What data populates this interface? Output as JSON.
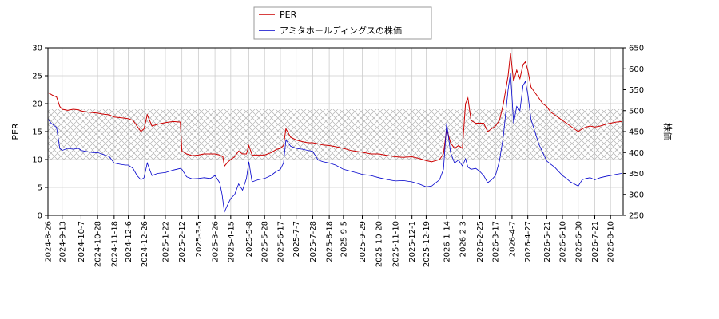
{
  "chart_data": {
    "type": "line",
    "legend": {
      "position": "top-center",
      "items": [
        "PER",
        "アミタホールディングスの株価"
      ]
    },
    "series": [
      {
        "name": "PER",
        "axis": "left",
        "color": "#cc0000",
        "points": [
          [
            "2024-08-26",
            22.0
          ],
          [
            "2024-09-01",
            21.5
          ],
          [
            "2024-09-06",
            21.2
          ],
          [
            "2024-09-10",
            19.5
          ],
          [
            "2024-09-13",
            19.0
          ],
          [
            "2024-09-20",
            18.8
          ],
          [
            "2024-09-27",
            19.0
          ],
          [
            "2024-10-04",
            18.9
          ],
          [
            "2024-10-07",
            18.7
          ],
          [
            "2024-10-15",
            18.5
          ],
          [
            "2024-10-22",
            18.4
          ],
          [
            "2024-10-28",
            18.3
          ],
          [
            "2024-11-05",
            18.1
          ],
          [
            "2024-11-12",
            18.0
          ],
          [
            "2024-11-18",
            17.6
          ],
          [
            "2024-11-25",
            17.5
          ],
          [
            "2024-12-02",
            17.4
          ],
          [
            "2024-12-06",
            17.3
          ],
          [
            "2024-12-12",
            17.0
          ],
          [
            "2024-12-17",
            16.0
          ],
          [
            "2024-12-22",
            15.0
          ],
          [
            "2024-12-26",
            15.5
          ],
          [
            "2024-12-30",
            18.0
          ],
          [
            "2025-01-05",
            16.0
          ],
          [
            "2025-01-12",
            16.3
          ],
          [
            "2025-01-22",
            16.6
          ],
          [
            "2025-02-01",
            16.8
          ],
          [
            "2025-02-10",
            16.7
          ],
          [
            "2025-02-12",
            11.5
          ],
          [
            "2025-02-18",
            11.0
          ],
          [
            "2025-02-25",
            10.7
          ],
          [
            "2025-03-05",
            10.8
          ],
          [
            "2025-03-12",
            11.0
          ],
          [
            "2025-03-20",
            11.0
          ],
          [
            "2025-03-26",
            11.0
          ],
          [
            "2025-04-01",
            10.8
          ],
          [
            "2025-04-05",
            10.5
          ],
          [
            "2025-04-07",
            8.8
          ],
          [
            "2025-04-11",
            9.5
          ],
          [
            "2025-04-15",
            10.0
          ],
          [
            "2025-04-20",
            10.5
          ],
          [
            "2025-04-25",
            11.5
          ],
          [
            "2025-04-30",
            11.0
          ],
          [
            "2025-05-05",
            11.0
          ],
          [
            "2025-05-08",
            12.5
          ],
          [
            "2025-05-12",
            10.8
          ],
          [
            "2025-05-20",
            10.8
          ],
          [
            "2025-05-28",
            10.8
          ],
          [
            "2025-06-05",
            11.2
          ],
          [
            "2025-06-12",
            11.8
          ],
          [
            "2025-06-17",
            12.0
          ],
          [
            "2025-06-21",
            12.5
          ],
          [
            "2025-06-24",
            15.5
          ],
          [
            "2025-06-30",
            14.0
          ],
          [
            "2025-07-07",
            13.5
          ],
          [
            "2025-07-15",
            13.2
          ],
          [
            "2025-07-22",
            13.0
          ],
          [
            "2025-07-28",
            13.0
          ],
          [
            "2025-08-04",
            12.8
          ],
          [
            "2025-08-10",
            12.6
          ],
          [
            "2025-08-18",
            12.5
          ],
          [
            "2025-08-26",
            12.3
          ],
          [
            "2025-09-05",
            12.0
          ],
          [
            "2025-09-15",
            11.6
          ],
          [
            "2025-09-29",
            11.3
          ],
          [
            "2025-10-10",
            11.0
          ],
          [
            "2025-10-20",
            11.0
          ],
          [
            "2025-11-01",
            10.7
          ],
          [
            "2025-11-10",
            10.5
          ],
          [
            "2025-11-20",
            10.4
          ],
          [
            "2025-12-01",
            10.5
          ],
          [
            "2025-12-10",
            10.2
          ],
          [
            "2025-12-19",
            9.8
          ],
          [
            "2025-12-26",
            9.6
          ],
          [
            "2026-01-05",
            10.0
          ],
          [
            "2026-01-10",
            11.0
          ],
          [
            "2026-01-14",
            15.5
          ],
          [
            "2026-01-19",
            13.0
          ],
          [
            "2026-01-24",
            12.0
          ],
          [
            "2026-01-29",
            12.5
          ],
          [
            "2026-02-03",
            12.0
          ],
          [
            "2026-02-07",
            20.0
          ],
          [
            "2026-02-10",
            21.0
          ],
          [
            "2026-02-14",
            17.0
          ],
          [
            "2026-02-20",
            16.5
          ],
          [
            "2026-02-25",
            16.5
          ],
          [
            "2026-03-02",
            16.5
          ],
          [
            "2026-03-07",
            15.0
          ],
          [
            "2026-03-12",
            15.5
          ],
          [
            "2026-03-17",
            16.0
          ],
          [
            "2026-03-22",
            17.0
          ],
          [
            "2026-03-27",
            20.0
          ],
          [
            "2026-04-02",
            25.0
          ],
          [
            "2026-04-05",
            29.0
          ],
          [
            "2026-04-09",
            24.0
          ],
          [
            "2026-04-13",
            26.0
          ],
          [
            "2026-04-17",
            24.5
          ],
          [
            "2026-04-21",
            27.0
          ],
          [
            "2026-04-24",
            27.5
          ],
          [
            "2026-04-27",
            26.0
          ],
          [
            "2026-05-01",
            23.0
          ],
          [
            "2026-05-06",
            22.0
          ],
          [
            "2026-05-11",
            21.0
          ],
          [
            "2026-05-16",
            20.0
          ],
          [
            "2026-05-21",
            19.5
          ],
          [
            "2026-05-26",
            18.5
          ],
          [
            "2026-05-31",
            18.0
          ],
          [
            "2026-06-05",
            17.5
          ],
          [
            "2026-06-10",
            17.0
          ],
          [
            "2026-06-15",
            16.5
          ],
          [
            "2026-06-20",
            16.0
          ],
          [
            "2026-06-25",
            15.5
          ],
          [
            "2026-06-30",
            15.0
          ],
          [
            "2026-07-05",
            15.5
          ],
          [
            "2026-07-10",
            15.8
          ],
          [
            "2026-07-15",
            16.0
          ],
          [
            "2026-07-21",
            15.8
          ],
          [
            "2026-07-28",
            16.0
          ],
          [
            "2026-08-04",
            16.3
          ],
          [
            "2026-08-10",
            16.5
          ],
          [
            "2026-08-17",
            16.7
          ],
          [
            "2026-08-24",
            16.8
          ]
        ]
      },
      {
        "name": "アミタホールディングスの株価",
        "axis": "right",
        "color": "#0000cc",
        "points": [
          [
            "2024-08-26",
            480
          ],
          [
            "2024-08-30",
            470
          ],
          [
            "2024-09-06",
            460
          ],
          [
            "2024-09-10",
            410
          ],
          [
            "2024-09-13",
            405
          ],
          [
            "2024-09-20",
            410
          ],
          [
            "2024-09-27",
            408
          ],
          [
            "2024-10-04",
            410
          ],
          [
            "2024-10-07",
            405
          ],
          [
            "2024-10-15",
            402
          ],
          [
            "2024-10-22",
            400
          ],
          [
            "2024-10-28",
            400
          ],
          [
            "2024-11-05",
            395
          ],
          [
            "2024-11-12",
            390
          ],
          [
            "2024-11-18",
            375
          ],
          [
            "2024-11-25",
            372
          ],
          [
            "2024-12-02",
            370
          ],
          [
            "2024-12-06",
            370
          ],
          [
            "2024-12-12",
            362
          ],
          [
            "2024-12-17",
            345
          ],
          [
            "2024-12-22",
            335
          ],
          [
            "2024-12-26",
            340
          ],
          [
            "2024-12-30",
            375
          ],
          [
            "2025-01-05",
            345
          ],
          [
            "2025-01-12",
            350
          ],
          [
            "2025-01-22",
            352
          ],
          [
            "2025-02-01",
            358
          ],
          [
            "2025-02-10",
            362
          ],
          [
            "2025-02-12",
            360
          ],
          [
            "2025-02-18",
            342
          ],
          [
            "2025-02-25",
            337
          ],
          [
            "2025-03-05",
            338
          ],
          [
            "2025-03-12",
            340
          ],
          [
            "2025-03-20",
            338
          ],
          [
            "2025-03-26",
            345
          ],
          [
            "2025-04-01",
            328
          ],
          [
            "2025-04-04",
            300
          ],
          [
            "2025-04-07",
            258
          ],
          [
            "2025-04-11",
            275
          ],
          [
            "2025-04-15",
            290
          ],
          [
            "2025-04-20",
            300
          ],
          [
            "2025-04-25",
            325
          ],
          [
            "2025-04-30",
            310
          ],
          [
            "2025-05-05",
            338
          ],
          [
            "2025-05-08",
            378
          ],
          [
            "2025-05-12",
            330
          ],
          [
            "2025-05-20",
            335
          ],
          [
            "2025-05-28",
            338
          ],
          [
            "2025-06-05",
            345
          ],
          [
            "2025-06-12",
            355
          ],
          [
            "2025-06-17",
            360
          ],
          [
            "2025-06-21",
            375
          ],
          [
            "2025-06-24",
            430
          ],
          [
            "2025-06-30",
            415
          ],
          [
            "2025-07-07",
            410
          ],
          [
            "2025-07-15",
            408
          ],
          [
            "2025-07-22",
            405
          ],
          [
            "2025-07-28",
            403
          ],
          [
            "2025-08-04",
            382
          ],
          [
            "2025-08-10",
            378
          ],
          [
            "2025-08-18",
            375
          ],
          [
            "2025-08-26",
            370
          ],
          [
            "2025-09-05",
            360
          ],
          [
            "2025-09-15",
            355
          ],
          [
            "2025-09-29",
            348
          ],
          [
            "2025-10-10",
            345
          ],
          [
            "2025-10-20",
            340
          ],
          [
            "2025-11-01",
            335
          ],
          [
            "2025-11-10",
            332
          ],
          [
            "2025-11-20",
            333
          ],
          [
            "2025-12-01",
            330
          ],
          [
            "2025-12-10",
            325
          ],
          [
            "2025-12-19",
            318
          ],
          [
            "2025-12-26",
            320
          ],
          [
            "2026-01-05",
            335
          ],
          [
            "2026-01-10",
            360
          ],
          [
            "2026-01-14",
            470
          ],
          [
            "2026-01-19",
            400
          ],
          [
            "2026-01-24",
            375
          ],
          [
            "2026-01-29",
            382
          ],
          [
            "2026-02-03",
            368
          ],
          [
            "2026-02-07",
            385
          ],
          [
            "2026-02-10",
            365
          ],
          [
            "2026-02-14",
            360
          ],
          [
            "2026-02-20",
            362
          ],
          [
            "2026-02-25",
            355
          ],
          [
            "2026-03-02",
            345
          ],
          [
            "2026-03-07",
            328
          ],
          [
            "2026-03-12",
            335
          ],
          [
            "2026-03-17",
            345
          ],
          [
            "2026-03-22",
            380
          ],
          [
            "2026-03-27",
            440
          ],
          [
            "2026-04-02",
            550
          ],
          [
            "2026-04-05",
            590
          ],
          [
            "2026-04-09",
            470
          ],
          [
            "2026-04-13",
            510
          ],
          [
            "2026-04-17",
            500
          ],
          [
            "2026-04-21",
            560
          ],
          [
            "2026-04-24",
            570
          ],
          [
            "2026-04-27",
            540
          ],
          [
            "2026-05-01",
            480
          ],
          [
            "2026-05-06",
            450
          ],
          [
            "2026-05-11",
            420
          ],
          [
            "2026-05-16",
            400
          ],
          [
            "2026-05-21",
            380
          ],
          [
            "2026-05-26",
            372
          ],
          [
            "2026-05-31",
            365
          ],
          [
            "2026-06-05",
            355
          ],
          [
            "2026-06-10",
            345
          ],
          [
            "2026-06-15",
            338
          ],
          [
            "2026-06-20",
            330
          ],
          [
            "2026-06-25",
            325
          ],
          [
            "2026-06-30",
            320
          ],
          [
            "2026-07-05",
            335
          ],
          [
            "2026-07-10",
            338
          ],
          [
            "2026-07-15",
            340
          ],
          [
            "2026-07-21",
            335
          ],
          [
            "2026-07-28",
            340
          ],
          [
            "2026-08-04",
            343
          ],
          [
            "2026-08-10",
            345
          ],
          [
            "2026-08-17",
            348
          ],
          [
            "2026-08-24",
            350
          ]
        ]
      }
    ],
    "shaded_band": {
      "axis": "left",
      "from": 10,
      "to": 19,
      "pattern": "crosshatch"
    },
    "x_range": [
      "2024-08-26",
      "2026-08-26"
    ],
    "x_ticks": [
      "2024-8-26",
      "2024-9-13",
      "2024-10-7",
      "2024-10-28",
      "2024-11-18",
      "2024-12-6",
      "2024-12-26",
      "2025-1-22",
      "2025-2-12",
      "2025-3-5",
      "2025-3-26",
      "2025-4-15",
      "2025-5-8",
      "2025-5-28",
      "2025-6-17",
      "2025-7-7",
      "2025-7-28",
      "2025-8-18",
      "2025-9-5",
      "2025-9-29",
      "2025-10-20",
      "2025-11-10",
      "2025-12-1",
      "2025-12-19",
      "2026-1-14",
      "2026-2-3",
      "2026-2-25",
      "2026-3-17",
      "2026-4-7",
      "2026-4-27",
      "2026-5-21",
      "2026-6-10",
      "2026-6-30",
      "2026-7-21",
      "2026-8-10"
    ],
    "y_left": {
      "label": "PER",
      "range": [
        0,
        30
      ],
      "ticks": [
        0,
        5,
        10,
        15,
        20,
        25,
        30
      ]
    },
    "y_right": {
      "label": "株価",
      "range": [
        250,
        650
      ],
      "ticks": [
        250,
        300,
        350,
        400,
        450,
        500,
        550,
        600,
        650
      ]
    },
    "grid": true
  }
}
